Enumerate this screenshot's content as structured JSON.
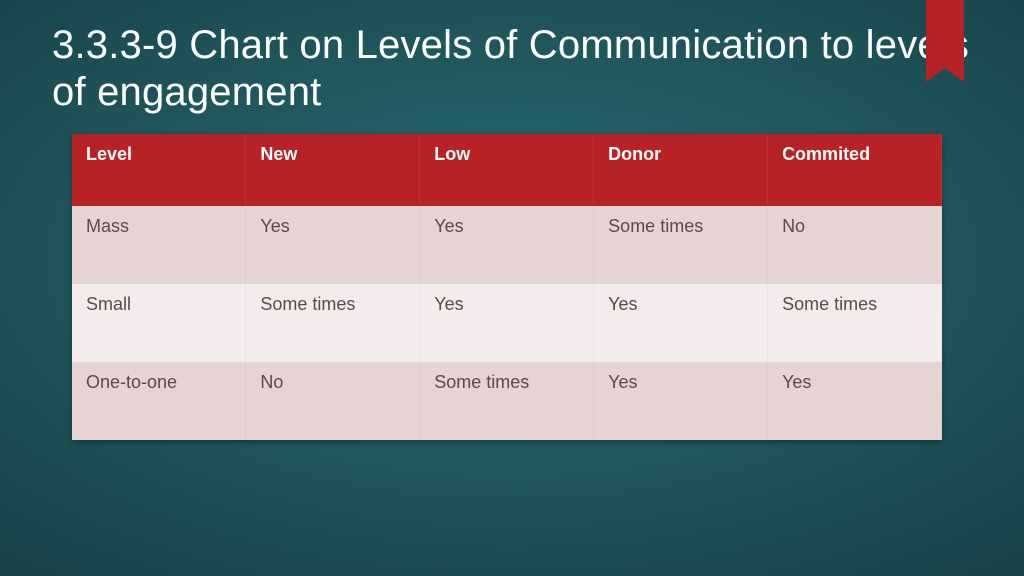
{
  "title": "3.3.3-9 Chart on Levels of Communication to levels of engagement",
  "table": {
    "header_bg": "#b72225",
    "header_text": "#ffffff",
    "row_bg_odd": "#e6d4d4",
    "row_bg_even": "#f4ecec",
    "cell_text": "#5a4a4a",
    "columns": [
      "Level",
      "New",
      "Low",
      "Donor",
      "Commited"
    ],
    "rows": [
      [
        "Mass",
        "Yes",
        "Yes",
        "Some times",
        "No"
      ],
      [
        "Small",
        "Some times",
        "Yes",
        "Yes",
        "Some times"
      ],
      [
        "One-to-one",
        "No",
        "Some times",
        "Yes",
        "Yes"
      ]
    ]
  },
  "ribbon_color": "#b72225"
}
